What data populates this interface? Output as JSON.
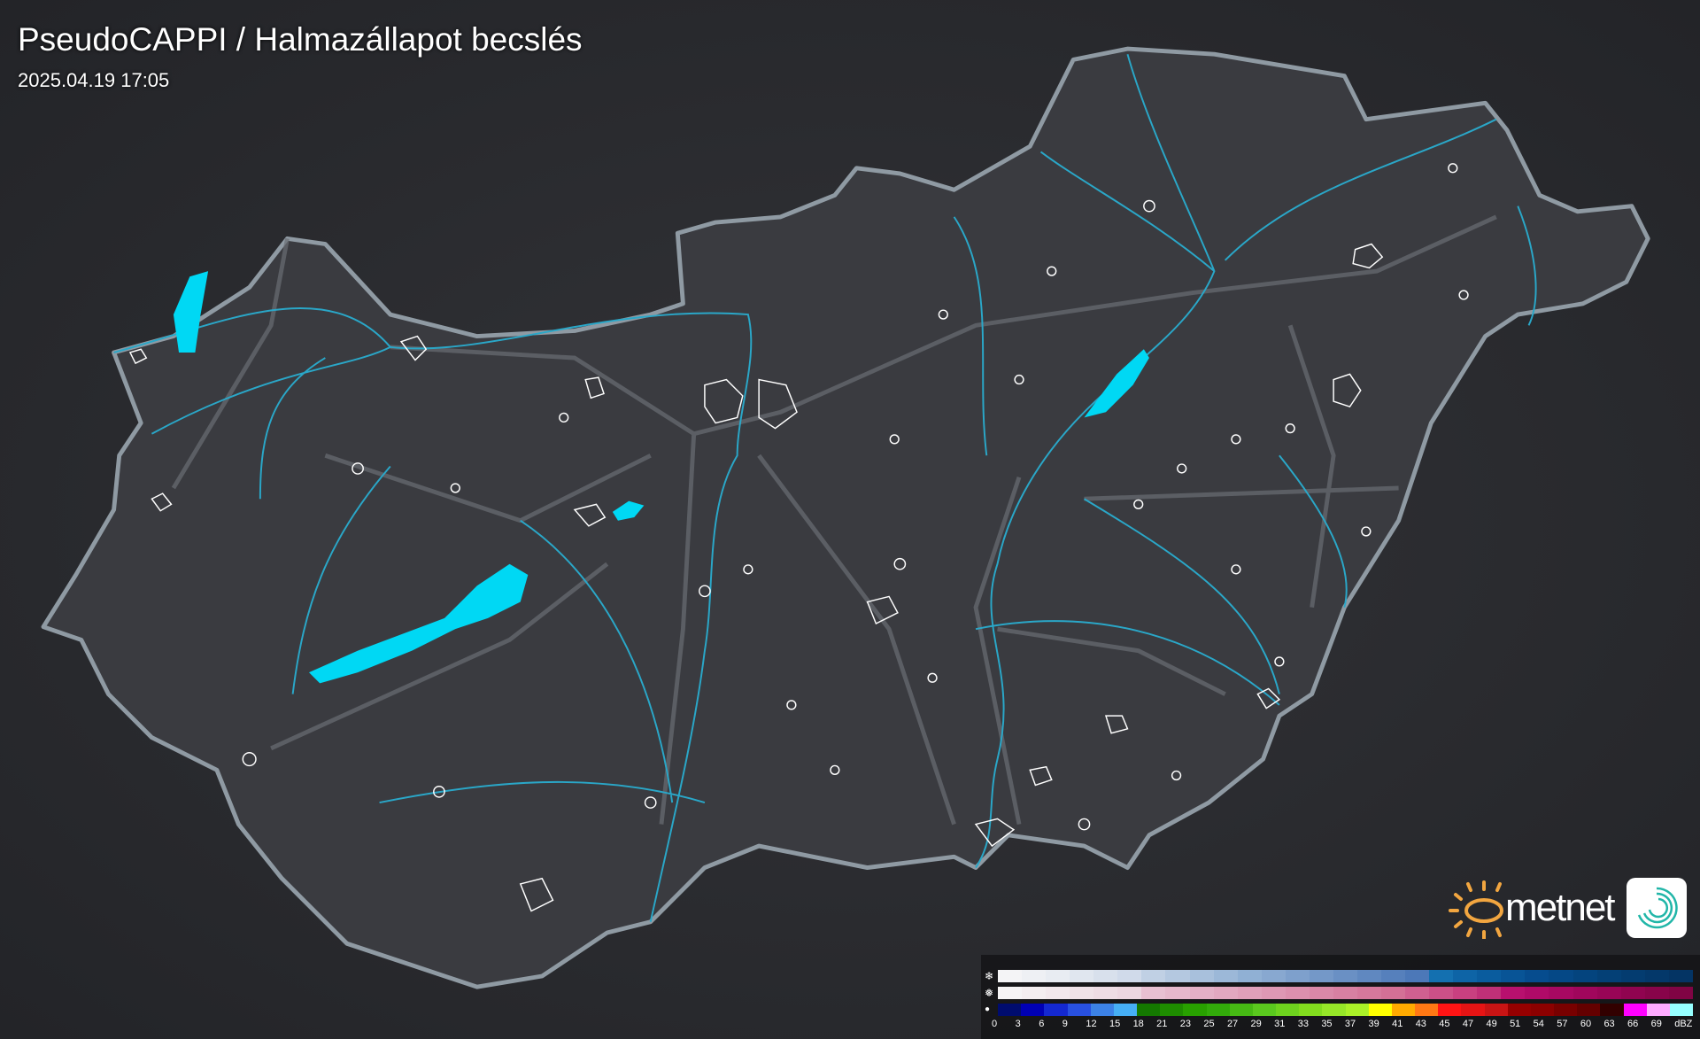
{
  "header": {
    "title": "PseudoCAPPI  / Halmazállapot becslés",
    "timestamp": "2025.04.19 17:05"
  },
  "colors": {
    "background": "#26272b",
    "country_fill": "#3a3b40",
    "border": "#8f9aa3",
    "rivers": "#2aa7c8",
    "lakes": "#00d8f4",
    "precip_contours": "#ffffff"
  },
  "legend": {
    "rows": [
      {
        "icon": "snowflake-icon",
        "symbol": "❄",
        "colors": [
          "#f4f4f6",
          "#eef0f4",
          "#e8ecf2",
          "#e0e6ef",
          "#d8e0ec",
          "#d0daea",
          "#c0d0e4",
          "#b4c8e0",
          "#a8c0dc",
          "#9cb8d8",
          "#90b0d4",
          "#88a8d0",
          "#7ea0cc",
          "#7498c8",
          "#6a90c4",
          "#6088c0",
          "#5680bc",
          "#4c78b8",
          "#1470b0",
          "#0e64a6",
          "#0a5c9e",
          "#085496",
          "#064c8e",
          "#054886",
          "#04447e",
          "#044076",
          "#043c70",
          "#04386a",
          "#043464"
        ]
      },
      {
        "icon": "sleet-icon",
        "symbol": "❅",
        "colors": [
          "#f6f4f5",
          "#f4eef0",
          "#f2e8ec",
          "#f0e2e8",
          "#eedce4",
          "#ecd6e0",
          "#e8c0d2",
          "#e6b8cc",
          "#e4b0c6",
          "#e2a8c0",
          "#e0a0ba",
          "#de98b4",
          "#dc90ae",
          "#da88a8",
          "#d880a2",
          "#d6789c",
          "#d47096",
          "#d06090",
          "#cc5088",
          "#c84080",
          "#c03078",
          "#b8106e",
          "#b00a68",
          "#a80862",
          "#a0065c",
          "#980556",
          "#900450",
          "#88044a",
          "#800444"
        ]
      },
      {
        "icon": "raindrop-icon",
        "symbol": "💧",
        "colors": [
          "#000c6e",
          "#0000b4",
          "#1428d0",
          "#2850e0",
          "#3c82e6",
          "#46aff5",
          "#147800",
          "#1e8c00",
          "#28a000",
          "#32aa0a",
          "#46b914",
          "#5ac81e",
          "#6ed21e",
          "#82dc1e",
          "#96e628",
          "#aaf028",
          "#ffff00",
          "#ffaa00",
          "#ff7814",
          "#ff1414",
          "#e61414",
          "#c81414",
          "#960000",
          "#8c0000",
          "#780000",
          "#640000",
          "#320000",
          "#ff00ff",
          "#ffaaff",
          "#96ffff"
        ]
      }
    ],
    "ticks": [
      "0",
      "3",
      "6",
      "9",
      "12",
      "15",
      "18",
      "21",
      "23",
      "25",
      "27",
      "29",
      "31",
      "33",
      "35",
      "37",
      "39",
      "41",
      "43",
      "45",
      "47",
      "49",
      "51",
      "54",
      "57",
      "60",
      "63",
      "66",
      "69",
      "dBZ"
    ]
  },
  "logo": {
    "text": "metnet"
  }
}
